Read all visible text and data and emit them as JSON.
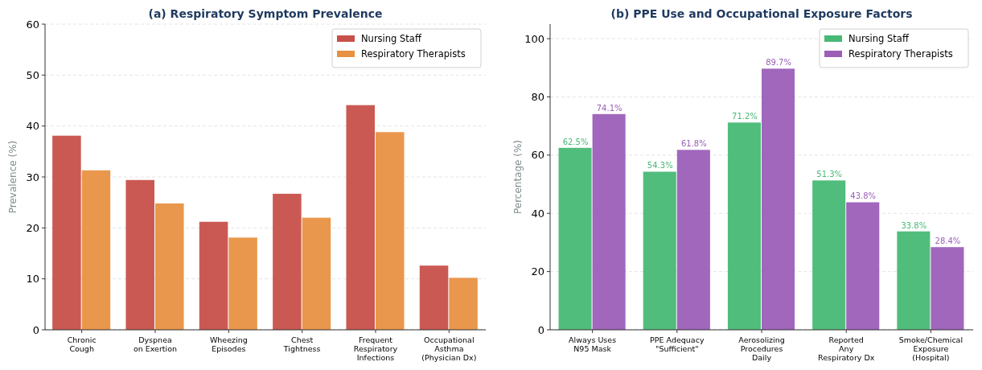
{
  "chart_data": [
    {
      "type": "bar",
      "title": "(a) Respiratory Symptom Prevalence",
      "ylabel": "Prevalence (%)",
      "categories": [
        "Chronic\nCough",
        "Dyspnea\non Exertion",
        "Wheezing\nEpisodes",
        "Chest\nTightness",
        "Frequent\nRespiratory\nInfections",
        "Occupational\nAsthma\n(Physician Dx)"
      ],
      "series": [
        {
          "name": "Nursing Staff",
          "color": "#c8504a",
          "values": [
            38.1,
            29.4,
            21.2,
            26.7,
            44.1,
            12.6
          ]
        },
        {
          "name": "Respiratory Therapists",
          "color": "#e89142",
          "values": [
            31.3,
            24.8,
            18.1,
            22.0,
            38.8,
            10.2
          ]
        }
      ],
      "ylim": [
        0,
        60
      ],
      "yticks": [
        0,
        10,
        20,
        30,
        40,
        50,
        60
      ],
      "grid": "y",
      "legend": "top right"
    },
    {
      "type": "bar",
      "title": "(b) PPE Use and Occupational Exposure Factors",
      "ylabel": "Percentage (%)",
      "categories": [
        "Always Uses\nN95 Mask",
        "PPE Adequacy\n\"Sufficient\"",
        "Aerosolizing\nProcedures\nDaily",
        "Reported\nAny\nRespiratory Dx",
        "Smoke/Chemical\nExposure\n(Hospital)"
      ],
      "series": [
        {
          "name": "Nursing Staff",
          "color": "#48b975",
          "values": [
            62.5,
            54.3,
            71.2,
            51.3,
            33.8
          ],
          "value_labels": [
            "62.5%",
            "54.3%",
            "71.2%",
            "51.3%",
            "33.8%"
          ]
        },
        {
          "name": "Respiratory Therapists",
          "color": "#9b5fb8",
          "values": [
            74.1,
            61.8,
            89.7,
            43.8,
            28.4
          ],
          "value_labels": [
            "74.1%",
            "61.8%",
            "89.7%",
            "43.8%",
            "28.4%"
          ]
        }
      ],
      "ylim": [
        0,
        105
      ],
      "yticks": [
        0,
        20,
        40,
        60,
        80,
        100
      ],
      "grid": "y",
      "legend": "top right"
    }
  ]
}
